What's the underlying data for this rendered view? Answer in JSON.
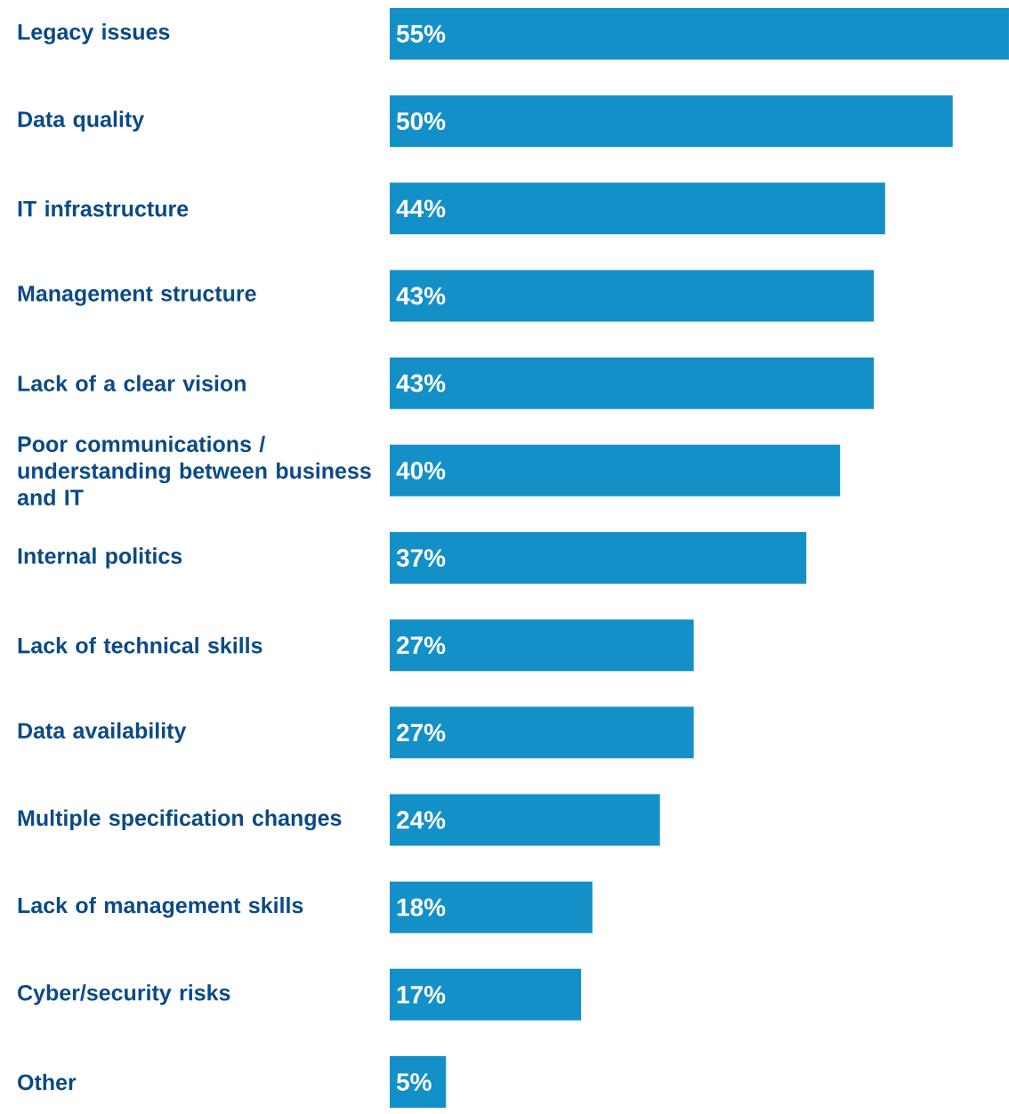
{
  "chart_data": {
    "type": "bar",
    "orientation": "horizontal",
    "color": "#1490c8",
    "tick_labels": "y",
    "xlim": [
      0,
      55
    ],
    "categories": [
      "Legacy issues",
      "Data quality",
      "IT infrastructure",
      "Management structure",
      "Lack of a clear vision",
      "Poor communications / understanding between business and IT",
      "Internal politics",
      "Lack of technical skills",
      "Data availability",
      "Multiple specification changes",
      "Lack of management skills",
      "Cyber/security risks",
      "Other"
    ],
    "values": [
      55,
      50,
      44,
      43,
      43,
      40,
      37,
      27,
      27,
      24,
      18,
      17,
      5
    ],
    "value_labels": [
      "55%",
      "50%",
      "44%",
      "43%",
      "43%",
      "40%",
      "37%",
      "27%",
      "27%",
      "24%",
      "18%",
      "17%",
      "5%"
    ]
  }
}
